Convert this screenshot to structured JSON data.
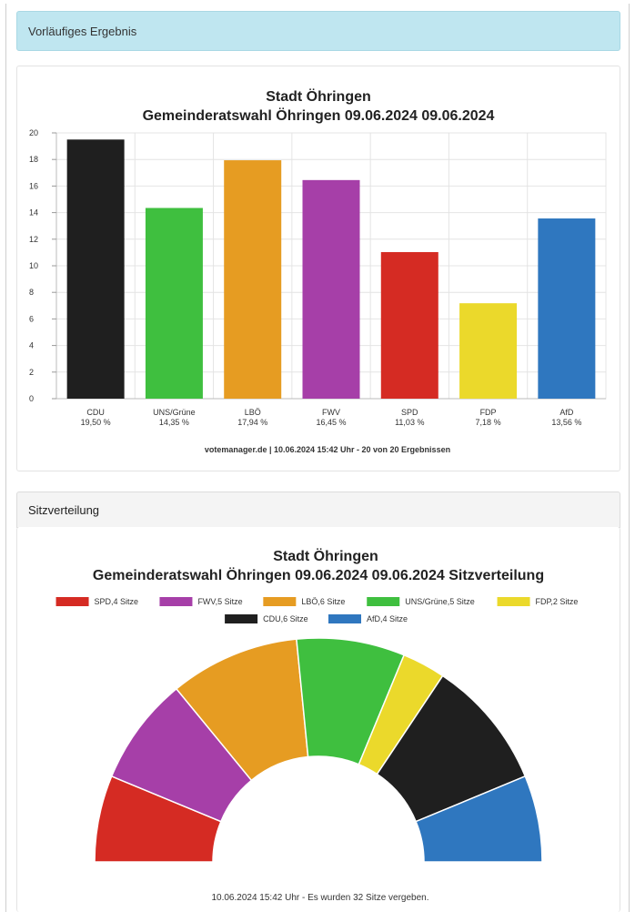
{
  "header": {
    "title": "Vorläufiges Ergebnis"
  },
  "seats_header": {
    "title": "Sitzverteilung"
  },
  "chart_data": [
    {
      "type": "bar",
      "title": "Stadt Öhringen",
      "subtitle": "Gemeinderatswahl Öhringen 09.06.2024 09.06.2024",
      "categories": [
        "CDU",
        "UNS/Grüne",
        "LBÖ",
        "FWV",
        "SPD",
        "FDP",
        "AfD"
      ],
      "value_labels": [
        "19,50 %",
        "14,35 %",
        "17,94 %",
        "16,45 %",
        "11,03 %",
        "7,18 %",
        "13,56 %"
      ],
      "values": [
        19.5,
        14.35,
        17.94,
        16.45,
        11.03,
        7.18,
        13.56
      ],
      "colors": [
        "#1f1f1f",
        "#3fbf3f",
        "#e69c22",
        "#a63fa8",
        "#d52b23",
        "#ebd92b",
        "#2f77bf"
      ],
      "ylim": [
        0,
        20
      ],
      "yticks": [
        "0",
        "2",
        "4",
        "6",
        "8",
        "10",
        "12",
        "14",
        "16",
        "18",
        "20"
      ],
      "grid": true,
      "credit": "votemanager.de | 10.06.2024 15:42 Uhr - 20 von 20 Ergebnissen"
    },
    {
      "type": "pie",
      "title": "Stadt Öhringen",
      "subtitle": "Gemeinderatswahl Öhringen 09.06.2024 09.06.2024 Sitzverteilung",
      "legend_placement": "top",
      "legend": [
        {
          "label": "SPD,4 Sitze",
          "color": "#d52b23"
        },
        {
          "label": "FWV,5 Sitze",
          "color": "#a63fa8"
        },
        {
          "label": "LBÖ,6 Sitze",
          "color": "#e69c22"
        },
        {
          "label": "UNS/Grüne,5 Sitze",
          "color": "#3fbf3f"
        },
        {
          "label": "FDP,2 Sitze",
          "color": "#ebd92b"
        },
        {
          "label": "CDU,6 Sitze",
          "color": "#1f1f1f"
        },
        {
          "label": "AfD,4 Sitze",
          "color": "#2f77bf"
        }
      ],
      "slices": [
        {
          "party": "SPD",
          "seats": 4,
          "color": "#d52b23"
        },
        {
          "party": "FWV",
          "seats": 5,
          "color": "#a63fa8"
        },
        {
          "party": "LBÖ",
          "seats": 6,
          "color": "#e69c22"
        },
        {
          "party": "UNS/Grüne",
          "seats": 5,
          "color": "#3fbf3f"
        },
        {
          "party": "FDP",
          "seats": 2,
          "color": "#ebd92b"
        },
        {
          "party": "CDU",
          "seats": 6,
          "color": "#1f1f1f"
        },
        {
          "party": "AfD",
          "seats": 4,
          "color": "#2f77bf"
        }
      ],
      "footer": "10.06.2024 15:42 Uhr - Es wurden 32 Sitze vergeben."
    }
  ]
}
